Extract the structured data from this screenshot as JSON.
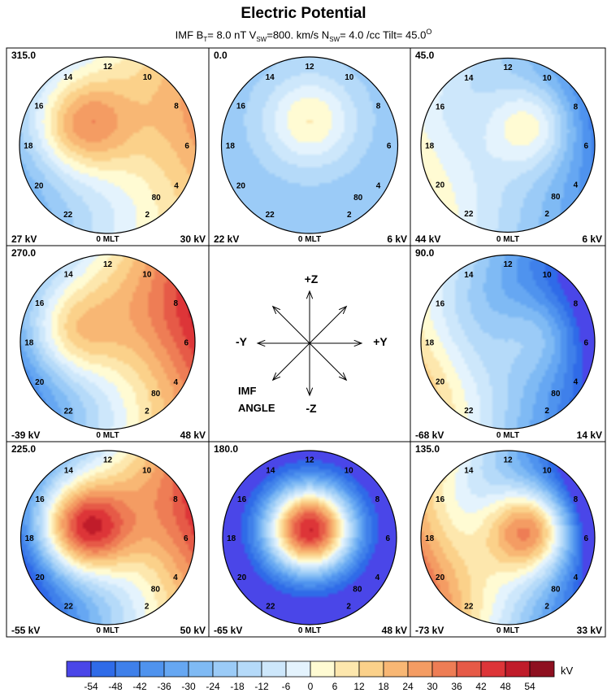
{
  "title": "Electric Potential",
  "subtitle": {
    "p1": "IMF B",
    "s1": "T",
    "p2": "= 8.0 nT  V",
    "s2": "SW",
    "p3": "=800. km/s  N",
    "s3": "SW",
    "p4": "= 4.0 /cc  Tilt= 45.0",
    "sup": "O"
  },
  "clock_labels": {
    "t12": "12",
    "t14": "14",
    "t10": "10",
    "t16": "16",
    "t8": "8",
    "t18": "18",
    "t6": "6",
    "t20": "20",
    "t4": "4",
    "t22": "22",
    "t2": "2",
    "t0": "0 MLT",
    "lat80": "80"
  },
  "diagram": {
    "plus_z": "+Z",
    "minus_z": "-Z",
    "plus_y": "+Y",
    "minus_y": "-Y",
    "imf": "IMF",
    "angle": "ANGLE"
  },
  "colorbar": {
    "unit": "kV",
    "ticks": [
      "-54",
      "-48",
      "-42",
      "-36",
      "-30",
      "-24",
      "-18",
      "-12",
      "-6",
      "0",
      "6",
      "12",
      "18",
      "24",
      "30",
      "36",
      "42",
      "48",
      "54"
    ],
    "colors": [
      "#4a46e8",
      "#2f6be8",
      "#3f80ea",
      "#4f93ee",
      "#66a7f2",
      "#7fbaf4",
      "#9bcbf7",
      "#b5daf9",
      "#cde7fb",
      "#e4f3fd",
      "#fffbd3",
      "#fde7ad",
      "#fbd18a",
      "#f8b774",
      "#f49c63",
      "#ee7d55",
      "#e65a47",
      "#dd3538",
      "#c01c2a",
      "#8e1020"
    ]
  },
  "chart_data": {
    "type": "heatmap",
    "title": "Electric Potential",
    "unit": "kV",
    "color_range": [
      -54,
      54
    ],
    "panels": [
      {
        "imf_angle": "315.0",
        "min_label": "27 kV",
        "max_label": "30 kV",
        "min_kV": -27,
        "max_kV": 30
      },
      {
        "imf_angle": "0.0",
        "min_label": "22 kV",
        "max_label": "6 kV",
        "min_kV": -22,
        "max_kV": 6
      },
      {
        "imf_angle": "45.0",
        "min_label": "44 kV",
        "max_label": "6 kV",
        "min_kV": -44,
        "max_kV": 6
      },
      {
        "imf_angle": "270.0",
        "min_label": "-39 kV",
        "max_label": "48 kV",
        "min_kV": -39,
        "max_kV": 48
      },
      null,
      {
        "imf_angle": "90.0",
        "min_label": "-68 kV",
        "max_label": "14 kV",
        "min_kV": -68,
        "max_kV": 14
      },
      {
        "imf_angle": "225.0",
        "min_label": "-55 kV",
        "max_label": "50 kV",
        "min_kV": -55,
        "max_kV": 50
      },
      {
        "imf_angle": "180.0",
        "min_label": "-65 kV",
        "max_label": "48 kV",
        "min_kV": -65,
        "max_kV": 48
      },
      {
        "imf_angle": "135.0",
        "min_label": "-73 kV",
        "max_label": "33 kV",
        "min_kV": -73,
        "max_kV": 33
      }
    ]
  }
}
